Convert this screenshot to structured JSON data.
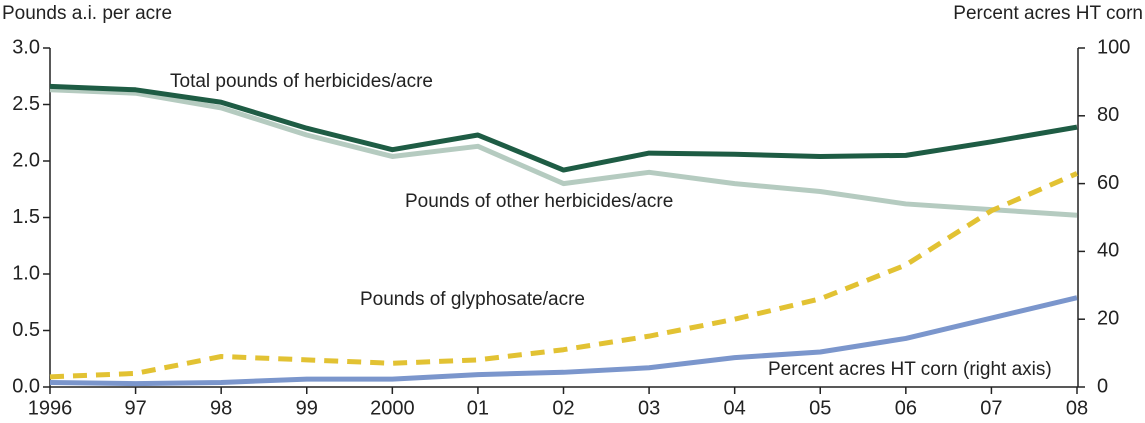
{
  "chart_data": {
    "type": "line",
    "y_label": "Pounds a.i. per acre",
    "y2_label": "Percent acres HT corn",
    "categories": [
      "1996",
      "97",
      "98",
      "99",
      "2000",
      "01",
      "02",
      "03",
      "04",
      "05",
      "06",
      "07",
      "08"
    ],
    "series": [
      {
        "name": "Total pounds of herbicides/acre",
        "color": "#1e5c44",
        "values": [
          2.66,
          2.63,
          2.52,
          2.29,
          2.1,
          2.23,
          1.92,
          2.07,
          2.06,
          2.04,
          2.05,
          2.17,
          2.3
        ]
      },
      {
        "name": "Pounds of other herbicides/acre",
        "color": "#b5cbc0",
        "values": [
          2.63,
          2.6,
          2.47,
          2.23,
          2.04,
          2.13,
          1.8,
          1.9,
          1.8,
          1.73,
          1.62,
          1.57,
          1.52
        ]
      },
      {
        "name": "Pounds of glyphosate/acre",
        "color": "#7b96cc",
        "values": [
          0.04,
          0.03,
          0.04,
          0.07,
          0.07,
          0.11,
          0.13,
          0.17,
          0.26,
          0.31,
          0.43,
          0.61,
          0.79
        ]
      },
      {
        "name": "Percent acres HT corn (right axis)",
        "color": "#e2c233",
        "dashed": true,
        "axis": "y2",
        "values": [
          3,
          4,
          9,
          8,
          7,
          8,
          11,
          15,
          20,
          26,
          36,
          52,
          63
        ]
      }
    ],
    "ylim": [
      0,
      3
    ],
    "yticks": [
      {
        "value": 0,
        "label": "0.0"
      },
      0.5,
      {
        "value": 1,
        "label": "1.0"
      },
      1.5,
      {
        "value": 2,
        "label": "2.0"
      },
      2.5,
      {
        "value": 3,
        "label": "3.0"
      }
    ],
    "y2lim": [
      0,
      100
    ],
    "y2ticks": [
      0,
      20,
      40,
      60,
      80,
      100
    ],
    "grid": false
  }
}
